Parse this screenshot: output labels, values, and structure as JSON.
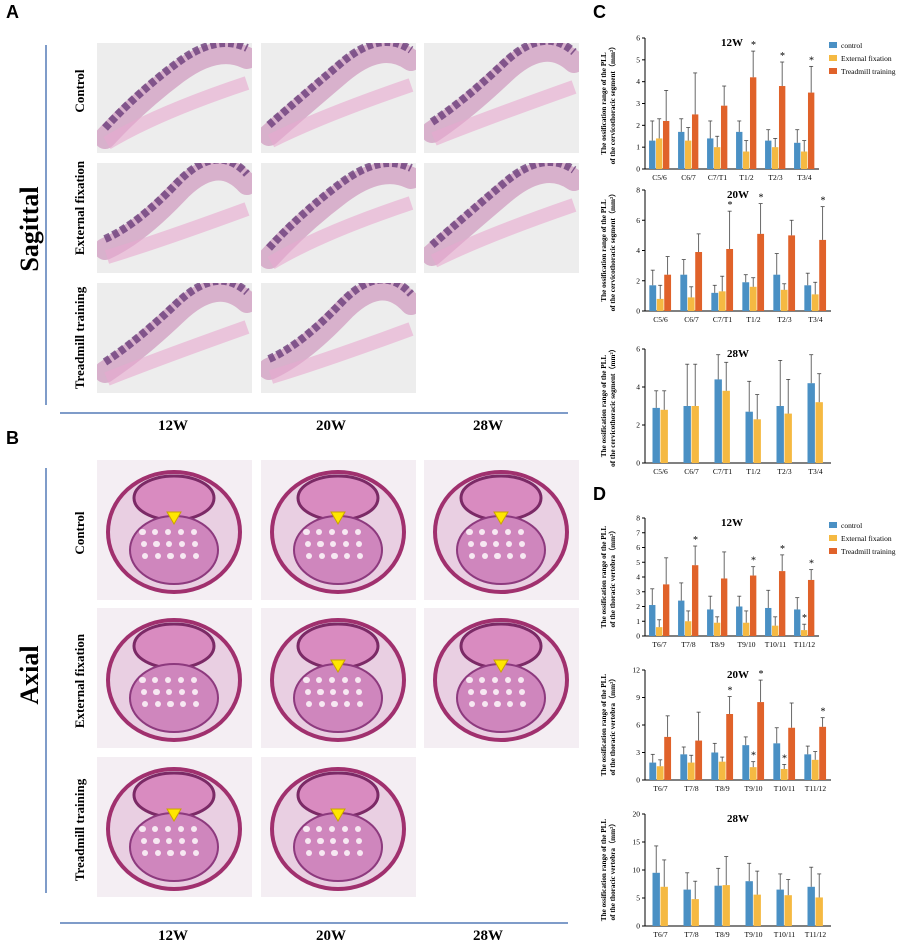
{
  "panels": {
    "A": "A",
    "B": "B",
    "C": "C",
    "D": "D"
  },
  "sagittal": {
    "section_label": "Sagittal",
    "rows": [
      "Control",
      "External fixation",
      "Treadmill training"
    ],
    "cols": [
      "12W",
      "20W",
      "28W"
    ],
    "tiles": [
      {
        "row": 0,
        "col": 0
      },
      {
        "row": 0,
        "col": 1
      },
      {
        "row": 0,
        "col": 2
      },
      {
        "row": 1,
        "col": 0
      },
      {
        "row": 1,
        "col": 1
      },
      {
        "row": 1,
        "col": 2
      },
      {
        "row": 2,
        "col": 0
      },
      {
        "row": 2,
        "col": 1
      }
    ]
  },
  "axial": {
    "section_label": "Axial",
    "rows": [
      "Control",
      "External fixation",
      "Treadmill training"
    ],
    "cols": [
      "12W",
      "20W",
      "28W"
    ],
    "tiles": [
      {
        "row": 0,
        "col": 0,
        "arrow": true
      },
      {
        "row": 0,
        "col": 1,
        "arrow": true
      },
      {
        "row": 0,
        "col": 2,
        "arrow": true
      },
      {
        "row": 1,
        "col": 0,
        "arrow": false
      },
      {
        "row": 1,
        "col": 1,
        "arrow": true
      },
      {
        "row": 1,
        "col": 2,
        "arrow": true
      },
      {
        "row": 2,
        "col": 0,
        "arrow": true
      },
      {
        "row": 2,
        "col": 1,
        "arrow": true
      }
    ]
  },
  "colors": {
    "control": "#4a90c4",
    "external": "#f5b942",
    "treadmill": "#e0622a",
    "axisline": "#7f9cc9",
    "arrow": "#ffe600"
  },
  "legend": [
    "control",
    "External fixation",
    "Treadmill training"
  ],
  "chart_data": [
    {
      "id": "C-12W",
      "type": "bar",
      "title": "12W",
      "ylabel": "The ossification range of the PLL of the cervicothoracic segment（mm²）",
      "categories": [
        "C5/6",
        "C6/7",
        "C7/T1",
        "T1/2",
        "T2/3",
        "T3/4"
      ],
      "ylim": [
        0,
        6
      ],
      "yticks": [
        0,
        1,
        2,
        3,
        4,
        5,
        6
      ],
      "series": [
        {
          "name": "control",
          "values": [
            1.3,
            1.7,
            1.4,
            1.7,
            1.3,
            1.2
          ],
          "err": [
            0.9,
            0.6,
            0.8,
            0.5,
            0.5,
            0.6
          ]
        },
        {
          "name": "External fixation",
          "values": [
            1.4,
            1.3,
            1.0,
            0.8,
            1.0,
            0.8
          ],
          "err": [
            0.9,
            0.6,
            0.5,
            0.5,
            0.4,
            0.5
          ]
        },
        {
          "name": "Treadmill training",
          "values": [
            2.2,
            2.5,
            2.9,
            4.2,
            3.8,
            3.5
          ],
          "err": [
            1.4,
            1.9,
            0.9,
            1.2,
            1.1,
            1.2
          ]
        }
      ],
      "stars": [
        {
          "cat": 3,
          "series": 2
        },
        {
          "cat": 4,
          "series": 2
        },
        {
          "cat": 5,
          "series": 2
        }
      ],
      "legend": true
    },
    {
      "id": "C-20W",
      "type": "bar",
      "title": "20W",
      "ylabel": "The ossification range of the PLL of the cervicothoracic segment（mm²）",
      "categories": [
        "C5/6",
        "C6/7",
        "C7/T1",
        "T1/2",
        "T2/3",
        "T3/4"
      ],
      "ylim": [
        0,
        8
      ],
      "yticks": [
        0,
        2,
        4,
        6,
        8
      ],
      "series": [
        {
          "name": "control",
          "values": [
            1.7,
            2.4,
            1.2,
            1.9,
            2.4,
            1.7
          ],
          "err": [
            1.0,
            1.0,
            0.5,
            0.5,
            1.4,
            0.8
          ]
        },
        {
          "name": "External fixation",
          "values": [
            0.8,
            0.9,
            1.3,
            1.6,
            1.4,
            1.1
          ],
          "err": [
            0.9,
            0.7,
            1.0,
            0.6,
            0.4,
            0.8
          ]
        },
        {
          "name": "Treadmill training",
          "values": [
            2.4,
            3.9,
            4.1,
            5.1,
            5.0,
            4.7
          ],
          "err": [
            1.2,
            1.2,
            2.5,
            2.0,
            1.0,
            2.2
          ]
        }
      ],
      "stars": [
        {
          "cat": 2,
          "series": 2
        },
        {
          "cat": 3,
          "series": 2
        },
        {
          "cat": 5,
          "series": 2
        }
      ],
      "legend": false
    },
    {
      "id": "C-28W",
      "type": "bar",
      "title": "28W",
      "ylabel": "The ossification range of the PLL of the cervicothoracic segment（mm²）",
      "categories": [
        "C5/6",
        "C6/7",
        "C7/T1",
        "T1/2",
        "T2/3",
        "T3/4"
      ],
      "ylim": [
        0,
        6
      ],
      "yticks": [
        0,
        2,
        4,
        6
      ],
      "series": [
        {
          "name": "control",
          "values": [
            2.9,
            3.0,
            4.4,
            2.7,
            3.0,
            4.2
          ],
          "err": [
            0.9,
            2.2,
            1.3,
            1.6,
            2.4,
            1.5
          ]
        },
        {
          "name": "External fixation",
          "values": [
            2.8,
            3.0,
            3.8,
            2.3,
            2.6,
            3.2
          ],
          "err": [
            1.0,
            2.2,
            1.5,
            1.3,
            1.8,
            1.5
          ]
        }
      ],
      "stars": [],
      "legend": false
    },
    {
      "id": "D-12W",
      "type": "bar",
      "title": "12W",
      "ylabel": "The ossification range of the PLL of the thoracic vertebra（mm²）",
      "categories": [
        "T6/7",
        "T7/8",
        "T8/9",
        "T9/10",
        "T10/11",
        "T11/12"
      ],
      "ylim": [
        0,
        8
      ],
      "yticks": [
        0,
        1,
        2,
        3,
        4,
        5,
        6,
        7,
        8
      ],
      "series": [
        {
          "name": "control",
          "values": [
            2.1,
            2.4,
            1.8,
            2.0,
            1.9,
            1.8
          ],
          "err": [
            1.1,
            1.2,
            0.9,
            0.7,
            1.2,
            0.8
          ]
        },
        {
          "name": "External fixation",
          "values": [
            0.6,
            1.0,
            0.9,
            0.9,
            0.7,
            0.4
          ],
          "err": [
            0.5,
            0.7,
            0.4,
            0.8,
            0.6,
            0.4
          ]
        },
        {
          "name": "Treadmill training",
          "values": [
            3.5,
            4.8,
            3.9,
            4.1,
            4.4,
            3.8
          ],
          "err": [
            1.8,
            1.3,
            1.8,
            0.6,
            1.1,
            0.7
          ]
        }
      ],
      "stars": [
        {
          "cat": 1,
          "series": 2
        },
        {
          "cat": 3,
          "series": 2
        },
        {
          "cat": 4,
          "series": 2
        },
        {
          "cat": 5,
          "series": 2
        },
        {
          "cat": 5,
          "series": 1
        }
      ],
      "legend": true
    },
    {
      "id": "D-20W",
      "type": "bar",
      "title": "20W",
      "ylabel": "The ossification range of the PLL of the thoracic vertebra（mm²）",
      "categories": [
        "T6/7",
        "T7/8",
        "T8/9",
        "T9/10",
        "T10/11",
        "T11/12"
      ],
      "ylim": [
        0,
        12
      ],
      "yticks": [
        0,
        3,
        6,
        9,
        12
      ],
      "series": [
        {
          "name": "control",
          "values": [
            1.9,
            2.8,
            3.0,
            3.8,
            4.0,
            2.8
          ],
          "err": [
            0.9,
            0.8,
            1.0,
            0.9,
            1.7,
            0.9
          ]
        },
        {
          "name": "External fixation",
          "values": [
            1.5,
            1.9,
            2.0,
            1.4,
            1.2,
            2.2
          ],
          "err": [
            0.7,
            0.8,
            0.5,
            0.6,
            0.5,
            0.9
          ]
        },
        {
          "name": "Treadmill training",
          "values": [
            4.7,
            4.3,
            7.2,
            8.5,
            5.7,
            5.8
          ],
          "err": [
            2.3,
            3.1,
            1.9,
            2.4,
            2.7,
            1.0
          ]
        }
      ],
      "stars": [
        {
          "cat": 2,
          "series": 2
        },
        {
          "cat": 3,
          "series": 2
        },
        {
          "cat": 3,
          "series": 1
        },
        {
          "cat": 4,
          "series": 1
        },
        {
          "cat": 5,
          "series": 2
        }
      ],
      "legend": false
    },
    {
      "id": "D-28W",
      "type": "bar",
      "title": "28W",
      "ylabel": "The ossification range of the PLL of the thoracic vertebra（mm²）",
      "categories": [
        "T6/7",
        "T7/8",
        "T8/9",
        "T9/10",
        "T10/11",
        "T11/12"
      ],
      "ylim": [
        0,
        20
      ],
      "yticks": [
        0,
        5,
        10,
        15,
        20
      ],
      "series": [
        {
          "name": "control",
          "values": [
            9.5,
            6.5,
            7.2,
            8.0,
            6.5,
            7.0
          ],
          "err": [
            4.8,
            3.0,
            3.1,
            3.2,
            2.8,
            3.5
          ]
        },
        {
          "name": "External fixation",
          "values": [
            7.0,
            4.8,
            7.3,
            5.6,
            5.5,
            5.1
          ],
          "err": [
            4.8,
            3.2,
            5.1,
            4.2,
            2.8,
            4.2
          ]
        }
      ],
      "stars": [],
      "legend": false
    }
  ]
}
